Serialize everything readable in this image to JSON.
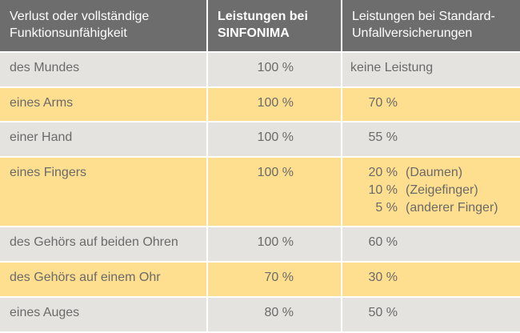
{
  "header": {
    "col1": [
      "Verlust oder vollständige",
      "Funktionsunfähigkeit"
    ],
    "col2": [
      "Leistungen bei",
      "SINFONIMA"
    ],
    "col3": [
      "Leistungen bei Standard-",
      "Unfallversicherungen"
    ]
  },
  "colors": {
    "header_bg": "#6d6d6d",
    "row_gray": "#e4e3df",
    "row_yellow": "#fedf8f",
    "text": "#6a6a6a"
  },
  "rows": [
    {
      "label": "des Mundes",
      "sinfonima": "100 %",
      "standard": [
        {
          "value": "keine Leistung",
          "note": ""
        }
      ]
    },
    {
      "label": "eines Arms",
      "sinfonima": "100 %",
      "standard": [
        {
          "value": "70 %",
          "note": ""
        }
      ]
    },
    {
      "label": "einer Hand",
      "sinfonima": "100 %",
      "standard": [
        {
          "value": "55 %",
          "note": ""
        }
      ]
    },
    {
      "label": "eines Fingers",
      "sinfonima": "100 %",
      "standard": [
        {
          "value": "20 %",
          "note": "(Daumen)"
        },
        {
          "value": "10 %",
          "note": "(Zeigefinger)"
        },
        {
          "value": "5 %",
          "note": "(anderer Finger)"
        }
      ]
    },
    {
      "label": "des Gehörs auf beiden Ohren",
      "sinfonima": "100 %",
      "standard": [
        {
          "value": "60 %",
          "note": ""
        }
      ]
    },
    {
      "label": "des Gehörs auf einem Ohr",
      "sinfonima": "70 %",
      "standard": [
        {
          "value": "30 %",
          "note": ""
        }
      ]
    },
    {
      "label": "eines Auges",
      "sinfonima": "80 %",
      "standard": [
        {
          "value": "50 %",
          "note": ""
        }
      ]
    }
  ]
}
